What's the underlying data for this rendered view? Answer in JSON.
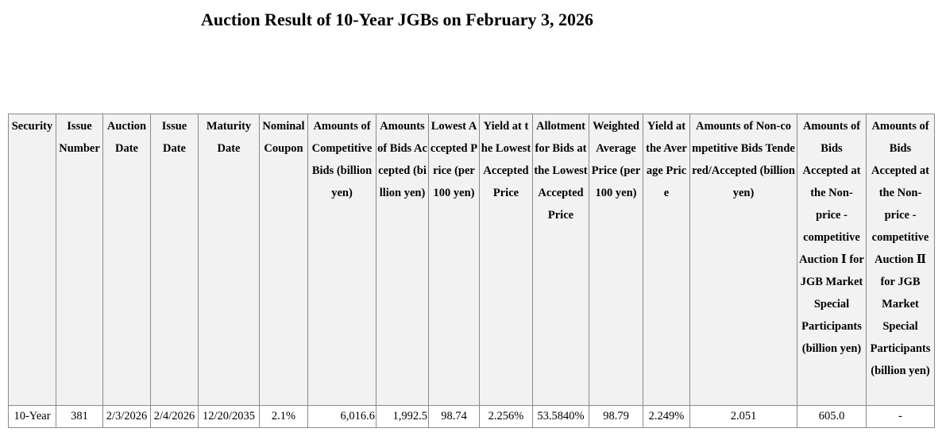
{
  "title": "Auction Result of 10-Year JGBs on February 3, 2026",
  "table": {
    "headers": [
      "Security",
      "Issue Number",
      "Auction Date",
      "Issue Date",
      "Maturity Date",
      "Nominal Coupon",
      "Amounts of Competitive Bids (billion yen)",
      "Amounts of Bids Accepted (billion yen)",
      "Lowest Accepted Price (per 100 yen)",
      "Yield at the Lowest Accepted Price",
      "Allotment for Bids at the Lowest Accepted Price",
      "Weighted Average Price (per 100 yen)",
      "Yield at the Average Price",
      "Amounts of Non-competitive Bids Tendered/Accepted (billion yen)",
      "Amounts of Bids Accepted at the Non-price - competitive Auction Ⅰ for JGB Market Special Participants (billion yen)",
      "Amounts of Bids Accepted at the Non-price - competitive Auction Ⅱ for JGB Market Special Participants (billion yen)"
    ],
    "row": [
      "10-Year",
      "381",
      "2/3/2026",
      "2/4/2026",
      "12/20/2035",
      "2.1%",
      "6,016.6",
      "1,992.5",
      "98.74",
      "2.256%",
      "53.5840%",
      "98.79",
      "2.249%",
      "2.051",
      "605.0",
      "-"
    ]
  }
}
